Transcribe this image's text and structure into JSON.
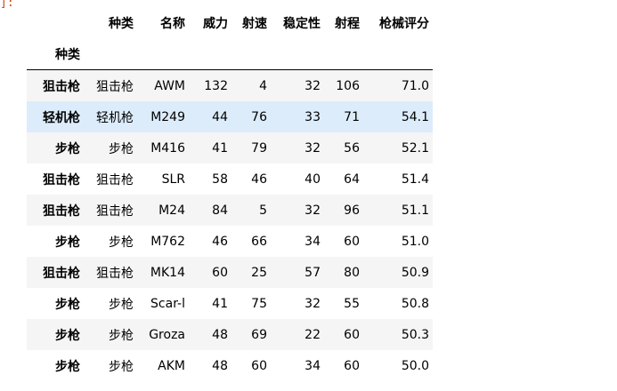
{
  "prompt_text": "]:",
  "table": {
    "columns": [
      "种类",
      "名称",
      "威力",
      "射速",
      "稳定性",
      "射程",
      "枪械评分"
    ],
    "index_name": "种类",
    "rows": [
      {
        "index": "狙击枪",
        "values": [
          "狙击枪",
          "AWM",
          "132",
          "4",
          "32",
          "106",
          "71.0"
        ],
        "highlighted": false
      },
      {
        "index": "轻机枪",
        "values": [
          "轻机枪",
          "M249",
          "44",
          "76",
          "33",
          "71",
          "54.1"
        ],
        "highlighted": true
      },
      {
        "index": "步枪",
        "values": [
          "步枪",
          "M416",
          "41",
          "79",
          "32",
          "56",
          "52.1"
        ],
        "highlighted": false
      },
      {
        "index": "狙击枪",
        "values": [
          "狙击枪",
          "SLR",
          "58",
          "46",
          "40",
          "64",
          "51.4"
        ],
        "highlighted": false
      },
      {
        "index": "狙击枪",
        "values": [
          "狙击枪",
          "M24",
          "84",
          "5",
          "32",
          "96",
          "51.1"
        ],
        "highlighted": false
      },
      {
        "index": "步枪",
        "values": [
          "步枪",
          "M762",
          "46",
          "66",
          "34",
          "60",
          "51.0"
        ],
        "highlighted": false
      },
      {
        "index": "狙击枪",
        "values": [
          "狙击枪",
          "MK14",
          "60",
          "25",
          "57",
          "80",
          "50.9"
        ],
        "highlighted": false
      },
      {
        "index": "步枪",
        "values": [
          "步枪",
          "Scar-l",
          "41",
          "75",
          "32",
          "55",
          "50.8"
        ],
        "highlighted": false
      },
      {
        "index": "步枪",
        "values": [
          "步枪",
          "Groza",
          "48",
          "69",
          "22",
          "60",
          "50.3"
        ],
        "highlighted": false
      },
      {
        "index": "步枪",
        "values": [
          "步枪",
          "AKM",
          "48",
          "60",
          "34",
          "60",
          "50.0"
        ],
        "highlighted": false
      }
    ]
  }
}
